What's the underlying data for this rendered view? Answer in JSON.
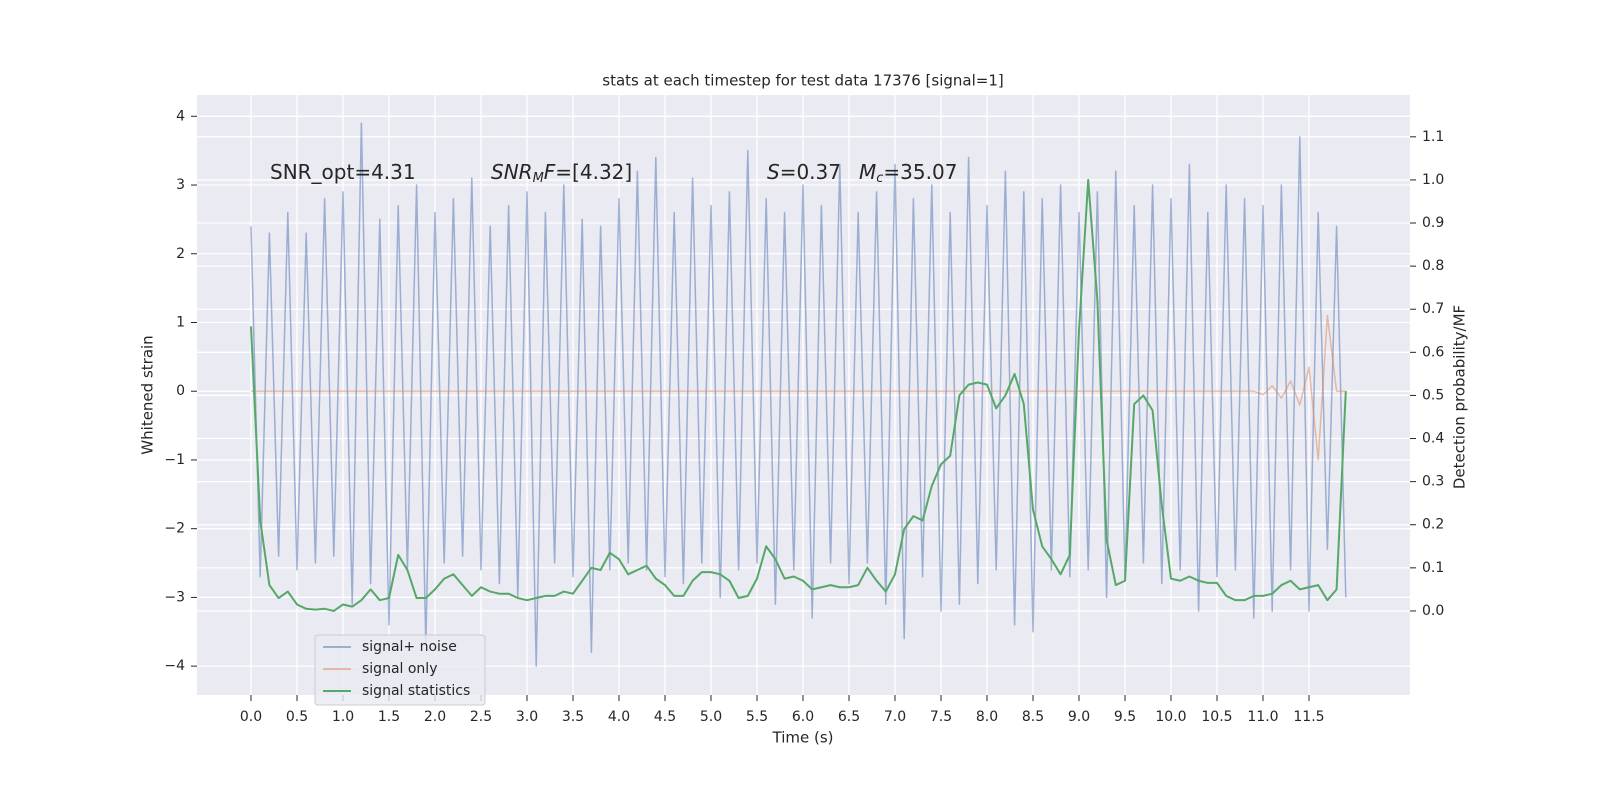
{
  "chart_data": {
    "type": "line",
    "title": "stats at each timestep for test data 17376 [signal=1]",
    "xlabel": "Time (s)",
    "ylabel": "Whitened strain",
    "y2label": "Detection probability/MF",
    "annotations": [
      [
        {
          "text": "SNR_opt=4.31"
        }
      ],
      [
        {
          "text": "SNR",
          "style": "italic"
        },
        {
          "text": "M",
          "style": "italic-sub"
        },
        {
          "text": "F",
          "style": "italic"
        },
        {
          "text": "=[4.32]"
        }
      ],
      [
        {
          "text": "S",
          "style": "italic"
        },
        {
          "text": "=0.37"
        }
      ],
      [
        {
          "text": "M",
          "style": "italic"
        },
        {
          "text": "c",
          "style": "italic-sub"
        },
        {
          "text": "=35.07"
        }
      ]
    ],
    "x": [
      0.0,
      0.1,
      0.2,
      0.3,
      0.4,
      0.5,
      0.6,
      0.7,
      0.8,
      0.9,
      1.0,
      1.1,
      1.2,
      1.3,
      1.4,
      1.5,
      1.6,
      1.7,
      1.8,
      1.9,
      2.0,
      2.1,
      2.2,
      2.3,
      2.4,
      2.5,
      2.6,
      2.7,
      2.8,
      2.9,
      3.0,
      3.1,
      3.2,
      3.3,
      3.4,
      3.5,
      3.6,
      3.7,
      3.8,
      3.9,
      4.0,
      4.1,
      4.2,
      4.3,
      4.4,
      4.5,
      4.6,
      4.7,
      4.8,
      4.9,
      5.0,
      5.1,
      5.2,
      5.3,
      5.4,
      5.5,
      5.6,
      5.7,
      5.8,
      5.9,
      6.0,
      6.1,
      6.2,
      6.3,
      6.4,
      6.5,
      6.6,
      6.7,
      6.8,
      6.9,
      7.0,
      7.1,
      7.2,
      7.3,
      7.4,
      7.5,
      7.6,
      7.7,
      7.8,
      7.9,
      8.0,
      8.1,
      8.2,
      8.3,
      8.4,
      8.5,
      8.6,
      8.7,
      8.8,
      8.9,
      9.0,
      9.1,
      9.2,
      9.3,
      9.4,
      9.5,
      9.6,
      9.7,
      9.8,
      9.9,
      10.0,
      10.1,
      10.2,
      10.3,
      10.4,
      10.5,
      10.6,
      10.7,
      10.8,
      10.9,
      11.0,
      11.1,
      11.2,
      11.3,
      11.4,
      11.5,
      11.6,
      11.7,
      11.8,
      11.9
    ],
    "series": [
      {
        "name": "signal+ noise",
        "color": "#4c72b0",
        "opacity": 0.5,
        "axis": "y",
        "values": [
          2.4,
          -2.7,
          2.3,
          -2.4,
          2.6,
          -2.6,
          2.3,
          -2.5,
          2.8,
          -2.4,
          2.9,
          -3.1,
          3.9,
          -2.8,
          2.5,
          -3.4,
          2.7,
          -2.6,
          3.0,
          -3.7,
          2.6,
          -2.5,
          2.8,
          -2.4,
          3.1,
          -2.6,
          2.4,
          -2.8,
          2.7,
          -3.0,
          2.9,
          -4.0,
          2.6,
          -2.5,
          3.0,
          -2.7,
          2.5,
          -3.8,
          2.4,
          -2.6,
          2.8,
          -2.5,
          3.2,
          -2.6,
          3.4,
          -2.7,
          2.6,
          -2.8,
          3.1,
          -2.5,
          2.7,
          -3.0,
          2.9,
          -2.6,
          3.5,
          -2.5,
          2.8,
          -3.1,
          2.6,
          -2.6,
          3.0,
          -3.3,
          2.7,
          -2.5,
          3.3,
          -2.8,
          2.6,
          -2.5,
          2.9,
          -3.1,
          3.3,
          -3.6,
          2.8,
          -2.7,
          3.0,
          -3.2,
          2.6,
          -3.1,
          3.4,
          -2.8,
          2.7,
          -2.6,
          3.2,
          -3.4,
          2.9,
          -3.5,
          2.8,
          -2.6,
          3.0,
          -2.7,
          2.6,
          -2.6,
          2.9,
          -3.0,
          3.2,
          -2.7,
          2.7,
          -2.5,
          3.0,
          -2.8,
          2.8,
          -2.6,
          3.3,
          -3.2,
          2.6,
          -2.7,
          3.0,
          -2.6,
          2.8,
          -3.3,
          2.7,
          -3.2,
          3.0,
          -2.6,
          3.7,
          -3.2,
          2.6,
          -2.3,
          2.4,
          -3.0
        ]
      },
      {
        "name": "signal only",
        "color": "#dd8452",
        "opacity": 0.5,
        "axis": "y",
        "values": [
          0,
          0,
          0,
          0,
          0,
          0,
          0,
          0,
          0,
          0,
          0,
          0,
          0,
          0,
          0,
          0,
          0,
          0,
          0,
          0,
          0,
          0,
          0,
          0,
          0,
          0,
          0,
          0,
          0,
          0,
          0,
          0,
          0,
          0,
          0,
          0,
          0,
          0,
          0,
          0,
          0,
          0,
          0,
          0,
          0,
          0,
          0,
          0,
          0,
          0,
          0,
          0,
          0,
          0,
          0,
          0,
          0,
          0,
          0,
          0,
          0,
          0,
          0,
          0,
          0,
          0,
          0,
          0,
          0,
          0,
          0,
          0,
          0,
          0,
          0,
          0,
          0,
          0,
          0,
          0,
          0,
          0,
          0,
          0,
          0,
          0,
          0,
          0,
          0,
          0,
          0,
          0,
          0,
          0,
          0,
          0,
          0,
          0,
          0,
          0,
          0,
          0,
          0,
          0,
          0,
          0,
          0,
          0,
          0,
          0,
          -0.05,
          0.08,
          -0.1,
          0.15,
          -0.2,
          0.35,
          -1.0,
          1.1,
          0,
          0
        ]
      },
      {
        "name": "signal statistics",
        "color": "#55a868",
        "opacity": 1,
        "axis": "y2",
        "values": [
          0.66,
          0.21,
          0.06,
          0.03,
          0.045,
          0.015,
          0.005,
          0.003,
          0.005,
          0.0,
          0.015,
          0.01,
          0.025,
          0.05,
          0.025,
          0.03,
          0.13,
          0.095,
          0.03,
          0.03,
          0.05,
          0.075,
          0.085,
          0.06,
          0.035,
          0.055,
          0.045,
          0.04,
          0.04,
          0.03,
          0.025,
          0.03,
          0.035,
          0.035,
          0.045,
          0.04,
          0.07,
          0.1,
          0.095,
          0.135,
          0.12,
          0.085,
          0.095,
          0.105,
          0.075,
          0.06,
          0.035,
          0.035,
          0.07,
          0.09,
          0.09,
          0.085,
          0.07,
          0.03,
          0.035,
          0.075,
          0.15,
          0.12,
          0.075,
          0.08,
          0.07,
          0.05,
          0.055,
          0.06,
          0.055,
          0.055,
          0.06,
          0.1,
          0.07,
          0.045,
          0.085,
          0.19,
          0.22,
          0.21,
          0.29,
          0.34,
          0.36,
          0.5,
          0.525,
          0.53,
          0.525,
          0.47,
          0.5,
          0.55,
          0.48,
          0.235,
          0.15,
          0.12,
          0.085,
          0.13,
          0.65,
          1.0,
          0.72,
          0.165,
          0.06,
          0.07,
          0.48,
          0.5,
          0.465,
          0.245,
          0.075,
          0.07,
          0.08,
          0.07,
          0.065,
          0.065,
          0.035,
          0.025,
          0.025,
          0.035,
          0.035,
          0.04,
          0.06,
          0.07,
          0.05,
          0.055,
          0.06,
          0.025,
          0.05,
          0.51
        ]
      }
    ],
    "xlim": [
      -0.587,
      12.598
    ],
    "xticks": [
      {
        "value": 0,
        "label": "0.0"
      },
      0.5,
      {
        "value": 1,
        "label": "1.0"
      },
      1.5,
      {
        "value": 2,
        "label": "2.0"
      },
      2.5,
      {
        "value": 3,
        "label": "3.0"
      },
      3.5,
      {
        "value": 4,
        "label": "4.0"
      },
      4.5,
      {
        "value": 5,
        "label": "5.0"
      },
      5.5,
      {
        "value": 6,
        "label": "6.0"
      },
      6.5,
      {
        "value": 7,
        "label": "7.0"
      },
      7.5,
      {
        "value": 8,
        "label": "8.0"
      },
      8.5,
      {
        "value": 9,
        "label": "9.0"
      },
      9.5,
      {
        "value": 10,
        "label": "10.0"
      },
      10.5,
      {
        "value": 11,
        "label": "11.0"
      },
      11.5
    ],
    "ylim": [
      -4.42,
      4.31
    ],
    "yticks": [
      {
        "value": -4,
        "label": "−4"
      },
      {
        "value": -3,
        "label": "−3"
      },
      {
        "value": -2,
        "label": "−2"
      },
      {
        "value": -1,
        "label": "−1"
      },
      0,
      1,
      2,
      3,
      4
    ],
    "y2lim": [
      -0.195,
      1.197
    ],
    "y2ticks": [
      {
        "value": 0,
        "label": "0.0"
      },
      0.1,
      0.2,
      0.3,
      0.4,
      0.5,
      0.6,
      0.7,
      0.8,
      0.9,
      {
        "value": 1,
        "label": "1.0"
      },
      1.1
    ],
    "grid": true,
    "legend": "lower left"
  }
}
